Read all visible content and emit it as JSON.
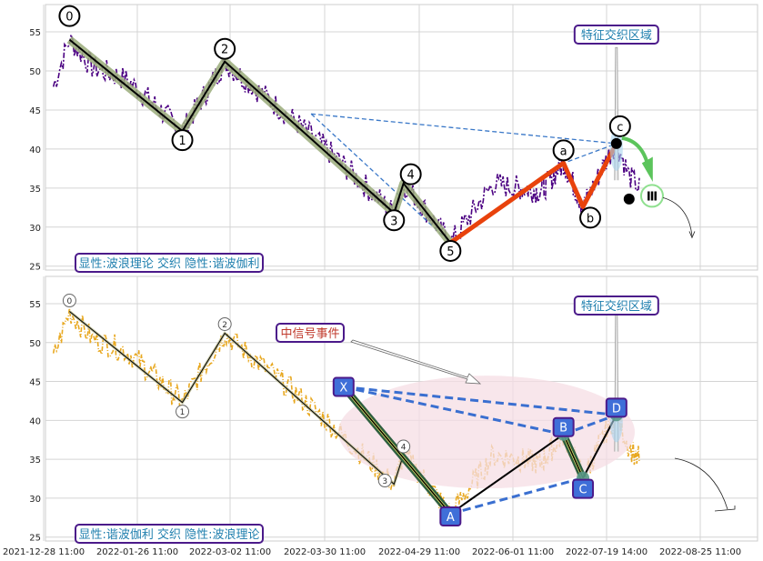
{
  "chart_data": [
    {
      "type": "line",
      "panel": "top",
      "ylim": [
        24.5,
        58.5
      ],
      "y_ticks": [
        25,
        30,
        35,
        40,
        45,
        50,
        55
      ],
      "grid": true,
      "colors": {
        "price": "#4b0082",
        "impulse": "#000000",
        "impulse_shadow": "#9aab7a",
        "correction": "#e8420c",
        "dashed": "#3a78c8"
      },
      "wave_points": [
        {
          "label": "0",
          "date": "2022-01-05",
          "value": 54.0
        },
        {
          "label": "1",
          "date": "2022-02-12",
          "value": 42.3
        },
        {
          "label": "2",
          "date": "2022-02-28",
          "value": 51.2
        },
        {
          "label": "3",
          "date": "2022-04-21",
          "value": 31.8
        },
        {
          "label": "4",
          "date": "2022-04-24",
          "value": 35.6
        },
        {
          "label": "5",
          "date": "2022-05-10",
          "value": 28.0
        }
      ],
      "correction_points": [
        {
          "label": "a",
          "date": "2022-06-27",
          "value": 38.2
        },
        {
          "label": "b",
          "date": "2022-07-07",
          "value": 32.6
        },
        {
          "label": "c",
          "date": "2022-07-23",
          "value": 40.7
        }
      ],
      "marker_label": "Ⅲ",
      "annotations": {
        "zone": "特征交织区域",
        "legend": "显性:波浪理论 交织 隐性:谐波伽利"
      }
    },
    {
      "type": "line",
      "panel": "bottom",
      "ylim": [
        24.5,
        58.5
      ],
      "y_ticks": [
        25,
        30,
        35,
        40,
        45,
        50,
        55
      ],
      "grid": true,
      "colors": {
        "price": "#e8a820",
        "pattern": "#000000",
        "pattern_shadow": "#2f5f3f",
        "dashed": "#3a6fd0",
        "ellipse": "#f5dde4"
      },
      "wave_points": [
        {
          "label": "0",
          "date": "2022-01-05",
          "value": 54.0
        },
        {
          "label": "1",
          "date": "2022-02-12",
          "value": 42.3
        },
        {
          "label": "2",
          "date": "2022-02-28",
          "value": 51.2
        },
        {
          "label": "3",
          "date": "2022-04-21",
          "value": 31.8
        },
        {
          "label": "4",
          "date": "2022-04-24",
          "value": 35.6
        }
      ],
      "harmonic_points": [
        {
          "label": "X",
          "date": "2022-04-05",
          "value": 44.3
        },
        {
          "label": "A",
          "date": "2022-05-10",
          "value": 28.0
        },
        {
          "label": "B",
          "date": "2022-06-27",
          "value": 38.2
        },
        {
          "label": "C",
          "date": "2022-07-07",
          "value": 32.6
        },
        {
          "label": "D",
          "date": "2022-07-23",
          "value": 40.7
        }
      ],
      "annotations": {
        "zone": "特征交织区域",
        "signal": "中信号事件",
        "legend": "显性:谐波伽利 交织 隐性:波浪理论"
      }
    }
  ],
  "x_axis": {
    "tick_labels": [
      "2021-12-28 11:00",
      "2022-01-26 11:00",
      "2022-03-02 11:00",
      "2022-03-30 11:00",
      "2022-04-29 11:00",
      "2022-06-01 11:00",
      "2022-07-19 14:00",
      "2022-08-25 11:00"
    ]
  }
}
